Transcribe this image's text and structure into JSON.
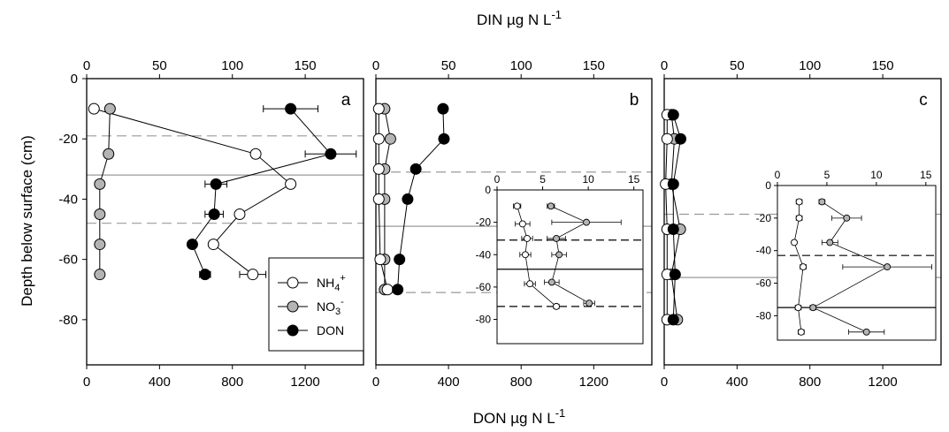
{
  "figure": {
    "top_axis_title": "DIN µg N L",
    "top_axis_sup": "-1",
    "bottom_axis_title": "DON µg N L",
    "bottom_axis_sup": "-1",
    "y_axis_title": "Depth below surface (cm)"
  },
  "legend": {
    "items": [
      {
        "key": "nh4",
        "label": "NH",
        "sub": "4",
        "sup": "+",
        "fill": "#ffffff"
      },
      {
        "key": "no3",
        "label": "NO",
        "sub": "3",
        "sup": "-",
        "fill": "#b4b4b4"
      },
      {
        "key": "don",
        "label": "DON",
        "sub": "",
        "sup": "",
        "fill": "#000000"
      }
    ]
  },
  "colors": {
    "nh4": "#ffffff",
    "no3": "#b4b4b4",
    "don": "#000000",
    "ref_line": "#9a9a9a",
    "inset_line": "#000000"
  },
  "chart_data": [
    {
      "type": "scatter",
      "panel_label": "a",
      "ylim": [
        -95,
        0
      ],
      "yticks": [
        0,
        -20,
        -40,
        -60,
        -80
      ],
      "din_xlim": [
        0,
        190
      ],
      "din_xticks": [
        0,
        50,
        100,
        150
      ],
      "don_xlim": [
        0,
        1520
      ],
      "don_xticks": [
        0,
        400,
        800,
        1200
      ],
      "hlines": [
        {
          "depth": -19,
          "style": "dashed"
        },
        {
          "depth": -32,
          "style": "solid"
        },
        {
          "depth": -48,
          "style": "dashed"
        }
      ],
      "series": [
        {
          "name": "NH4+",
          "key": "nh4",
          "axis": "din",
          "points": [
            {
              "x": 5,
              "y": -10
            },
            {
              "x": 116,
              "y": -25
            },
            {
              "x": 140,
              "y": -35
            },
            {
              "x": 105,
              "y": -45
            },
            {
              "x": 87,
              "y": -55
            },
            {
              "x": 114,
              "y": -65,
              "err": 9
            }
          ]
        },
        {
          "name": "NO3-",
          "key": "no3",
          "axis": "din",
          "points": [
            {
              "x": 16,
              "y": -10
            },
            {
              "x": 15,
              "y": -25
            },
            {
              "x": 9,
              "y": -35
            },
            {
              "x": 9,
              "y": -45
            },
            {
              "x": 9,
              "y": -55
            },
            {
              "x": 9,
              "y": -65
            }
          ]
        },
        {
          "name": "DON",
          "key": "don",
          "axis": "don",
          "points": [
            {
              "x": 1120,
              "y": -10,
              "err": 150
            },
            {
              "x": 1340,
              "y": -25,
              "err": 140
            },
            {
              "x": 710,
              "y": -35,
              "err": 60
            },
            {
              "x": 700,
              "y": -45,
              "err": 50
            },
            {
              "x": 580,
              "y": -55
            },
            {
              "x": 650,
              "y": -65,
              "err": 30
            }
          ]
        }
      ]
    },
    {
      "type": "scatter",
      "panel_label": "b",
      "ylim": [
        -95,
        0
      ],
      "din_xlim": [
        0,
        190
      ],
      "din_xticks": [
        0,
        50,
        100,
        150
      ],
      "don_xlim": [
        0,
        1520
      ],
      "don_xticks": [
        0,
        400,
        800,
        1200
      ],
      "hlines": [
        {
          "depth": -31,
          "style": "dashed"
        },
        {
          "depth": -49,
          "style": "solid"
        },
        {
          "depth": -71,
          "style": "dashed"
        }
      ],
      "series": [
        {
          "name": "NH4+",
          "key": "nh4",
          "axis": "din",
          "points": [
            {
              "x": 2,
              "y": -10
            },
            {
              "x": 2,
              "y": -20
            },
            {
              "x": 2,
              "y": -30
            },
            {
              "x": 2,
              "y": -40
            },
            {
              "x": 3,
              "y": -60
            },
            {
              "x": 8,
              "y": -70
            }
          ]
        },
        {
          "name": "NO3-",
          "key": "no3",
          "axis": "din",
          "points": [
            {
              "x": 6,
              "y": -10
            },
            {
              "x": 10,
              "y": -20
            },
            {
              "x": 6,
              "y": -30
            },
            {
              "x": 6,
              "y": -40
            },
            {
              "x": 6,
              "y": -60
            },
            {
              "x": 6,
              "y": -70
            }
          ]
        },
        {
          "name": "DON",
          "key": "don",
          "axis": "don",
          "points": [
            {
              "x": 370,
              "y": -10,
              "err": 20
            },
            {
              "x": 375,
              "y": -20,
              "err": 20
            },
            {
              "x": 220,
              "y": -30
            },
            {
              "x": 175,
              "y": -40
            },
            {
              "x": 130,
              "y": -60
            },
            {
              "x": 120,
              "y": -70
            }
          ]
        }
      ],
      "inset": {
        "xlim": [
          0,
          16
        ],
        "xticks": [
          0,
          5,
          10,
          15
        ],
        "ylim": [
          -95,
          0
        ],
        "yticks": [
          0,
          -20,
          -40,
          -60,
          -80
        ],
        "hlines": [
          {
            "depth": -31,
            "style": "dashed"
          },
          {
            "depth": -49,
            "style": "solid"
          },
          {
            "depth": -72,
            "style": "dashed"
          }
        ],
        "series": [
          {
            "name": "NH4+",
            "key": "nh4",
            "points": [
              {
                "x": 2.2,
                "y": -10,
                "err": 0.4
              },
              {
                "x": 2.8,
                "y": -21,
                "err": 0.8
              },
              {
                "x": 3.3,
                "y": -30,
                "err": 0.6
              },
              {
                "x": 3.1,
                "y": -40,
                "err": 0.6
              },
              {
                "x": 3.6,
                "y": -58,
                "err": 0.6
              },
              {
                "x": 6.5,
                "y": -72,
                "err": 0.3
              }
            ]
          },
          {
            "name": "NO3-",
            "key": "no3",
            "points": [
              {
                "x": 5.9,
                "y": -10,
                "err": 0.4
              },
              {
                "x": 9.8,
                "y": -20,
                "err": 3.8
              },
              {
                "x": 6.5,
                "y": -30,
                "err": 1.0
              },
              {
                "x": 6.8,
                "y": -40,
                "err": 0.8
              },
              {
                "x": 6.0,
                "y": -57,
                "err": 0.8
              },
              {
                "x": 10.1,
                "y": -70,
                "err": 0.6
              }
            ]
          }
        ]
      }
    },
    {
      "type": "scatter",
      "panel_label": "c",
      "ylim": [
        -95,
        0
      ],
      "din_xlim": [
        0,
        190
      ],
      "din_xticks": [
        0,
        50,
        100,
        150
      ],
      "don_xlim": [
        0,
        1520
      ],
      "don_xticks": [
        0,
        400,
        800,
        1200
      ],
      "hlines": [
        {
          "depth": -45,
          "style": "dashed"
        },
        {
          "depth": -66,
          "style": "solid"
        }
      ],
      "series": [
        {
          "name": "NH4+",
          "key": "nh4",
          "axis": "din",
          "points": [
            {
              "x": 2,
              "y": -12
            },
            {
              "x": 2,
              "y": -20
            },
            {
              "x": 1,
              "y": -35
            },
            {
              "x": 2,
              "y": -50
            },
            {
              "x": 2,
              "y": -65
            },
            {
              "x": 2,
              "y": -80
            }
          ]
        },
        {
          "name": "NO3-",
          "key": "no3",
          "axis": "din",
          "points": [
            {
              "x": 5,
              "y": -12
            },
            {
              "x": 7,
              "y": -20
            },
            {
              "x": 5,
              "y": -35
            },
            {
              "x": 11,
              "y": -50
            },
            {
              "x": 5,
              "y": -65
            },
            {
              "x": 9,
              "y": -80
            }
          ]
        },
        {
          "name": "DON",
          "key": "don",
          "axis": "don",
          "points": [
            {
              "x": 50,
              "y": -12
            },
            {
              "x": 90,
              "y": -20
            },
            {
              "x": 50,
              "y": -35
            },
            {
              "x": 50,
              "y": -50
            },
            {
              "x": 60,
              "y": -65
            },
            {
              "x": 50,
              "y": -80
            }
          ]
        }
      ],
      "inset": {
        "xlim": [
          0,
          16
        ],
        "xticks": [
          0,
          5,
          10,
          15
        ],
        "ylim": [
          -95,
          0
        ],
        "yticks": [
          0,
          -20,
          -40,
          -60,
          -80
        ],
        "hlines": [
          {
            "depth": -43,
            "style": "dashed"
          },
          {
            "depth": -75,
            "style": "solid"
          }
        ],
        "series": [
          {
            "name": "NH4+",
            "key": "nh4",
            "points": [
              {
                "x": 2.2,
                "y": -10,
                "err": 0.3
              },
              {
                "x": 2.2,
                "y": -20,
                "err": 0.3
              },
              {
                "x": 1.7,
                "y": -35,
                "err": 0.2
              },
              {
                "x": 2.6,
                "y": -50,
                "err": 0.3
              },
              {
                "x": 2.1,
                "y": -75,
                "err": 0.3
              },
              {
                "x": 2.4,
                "y": -90,
                "err": 0.3
              }
            ]
          },
          {
            "name": "NO3-",
            "key": "no3",
            "points": [
              {
                "x": 4.5,
                "y": -10,
                "err": 0.3
              },
              {
                "x": 7.0,
                "y": -20,
                "err": 1.5
              },
              {
                "x": 5.3,
                "y": -35,
                "err": 0.8
              },
              {
                "x": 11.1,
                "y": -50,
                "err": 4.5
              },
              {
                "x": 3.6,
                "y": -75,
                "err": 0.3
              },
              {
                "x": 9.0,
                "y": -90,
                "err": 1.8
              }
            ]
          }
        ]
      }
    }
  ]
}
